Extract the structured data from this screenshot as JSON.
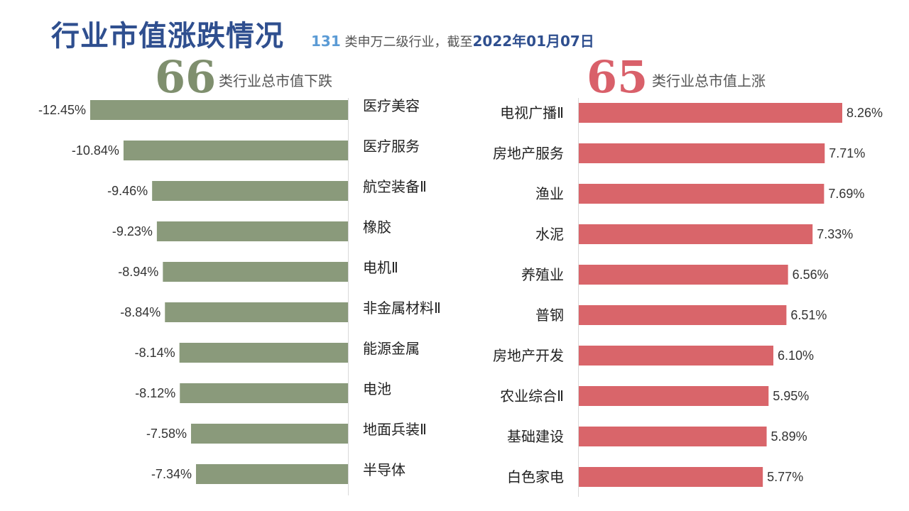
{
  "header": {
    "title": "行业市值涨跌情况",
    "subtitle_count": "131",
    "subtitle_mid": "类申万二级行业，截至",
    "subtitle_date": "2022年01月07日"
  },
  "left_panel": {
    "count": "66",
    "label": "类行业总市值下跌"
  },
  "right_panel": {
    "count": "65",
    "label": "类行业总市值上涨"
  },
  "colors": {
    "title": "#2f4f8f",
    "down": "#8a9a7b",
    "up": "#d9656a",
    "down_num": "#7f8f6e",
    "up_num": "#d9606a"
  },
  "chart_data": [
    {
      "type": "bar",
      "orientation": "horizontal",
      "categories": [
        "医疗美容",
        "医疗服务",
        "航空装备Ⅱ",
        "橡胶",
        "电机Ⅱ",
        "非金属材料Ⅱ",
        "能源金属",
        "电池",
        "地面兵装Ⅱ",
        "半导体"
      ],
      "values": [
        -12.45,
        -10.84,
        -9.46,
        -9.23,
        -8.94,
        -8.84,
        -8.14,
        -8.12,
        -7.58,
        -7.34
      ],
      "value_labels": [
        "-12.45%",
        "-10.84%",
        "-9.46%",
        "-9.23%",
        "-8.94%",
        "-8.84%",
        "-8.14%",
        "-8.12%",
        "-7.58%",
        "-7.34%"
      ]
    },
    {
      "type": "bar",
      "orientation": "horizontal",
      "categories": [
        "电视广播Ⅱ",
        "房地产服务",
        "渔业",
        "水泥",
        "养殖业",
        "普钢",
        "房地产开发",
        "农业综合Ⅱ",
        "基础建设",
        "白色家电"
      ],
      "values": [
        8.26,
        7.71,
        7.69,
        7.33,
        6.56,
        6.51,
        6.1,
        5.95,
        5.89,
        5.77
      ],
      "value_labels": [
        "8.26%",
        "7.71%",
        "7.69%",
        "7.33%",
        "6.56%",
        "6.51%",
        "6.10%",
        "5.95%",
        "5.89%",
        "5.77%"
      ]
    }
  ]
}
